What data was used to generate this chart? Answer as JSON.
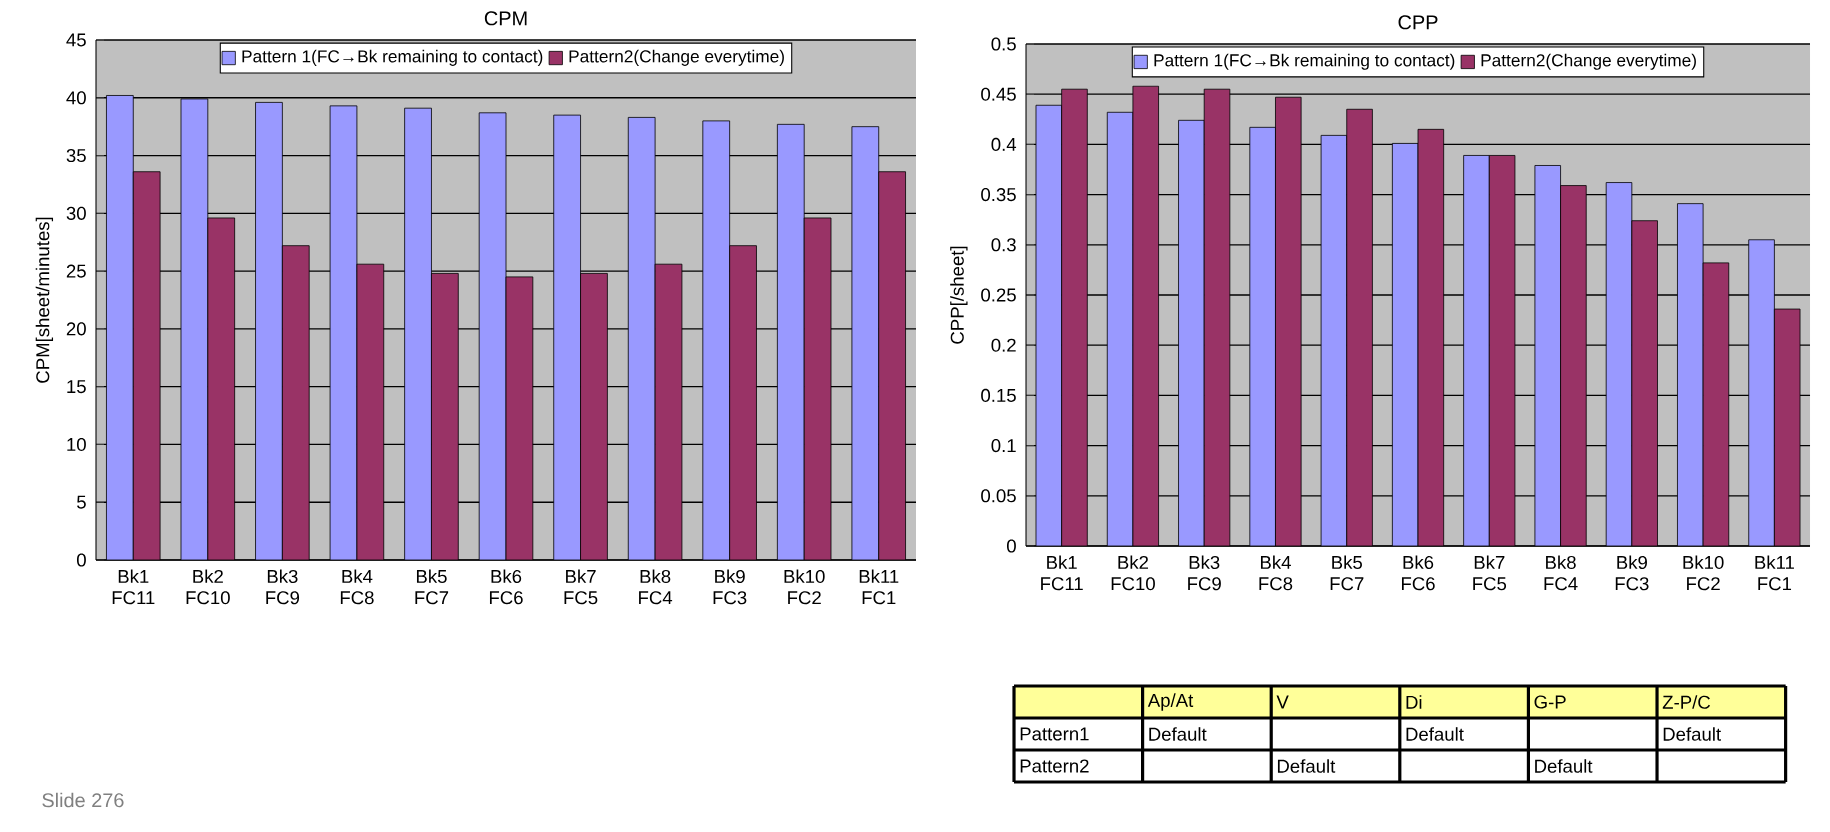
{
  "chart_data": [
    {
      "type": "bar",
      "title": "CPM",
      "ylabel": "CPM[sheet/minutes]",
      "categories": [
        "Bk1 FC11",
        "Bk2 FC10",
        "Bk3 FC9",
        "Bk4 FC8",
        "Bk5 FC7",
        "Bk6 FC6",
        "Bk7 FC5",
        "Bk8 FC4",
        "Bk9 FC3",
        "Bk10 FC2",
        "Bk11 FC1"
      ],
      "series": [
        {
          "name": "Pattern 1(FC→Bk remaining to contact)",
          "color": "#9999ff",
          "values": [
            40.2,
            39.9,
            39.6,
            39.3,
            39.1,
            38.7,
            38.5,
            38.3,
            38.0,
            37.7,
            37.5
          ]
        },
        {
          "name": "Pattern2(Change everytime)",
          "color": "#993366",
          "values": [
            33.6,
            29.6,
            27.2,
            25.6,
            24.8,
            24.5,
            24.8,
            25.6,
            27.2,
            29.6,
            33.6
          ]
        }
      ],
      "ylim": [
        0,
        45
      ],
      "yticks": [
        0,
        5,
        10,
        15,
        20,
        25,
        30,
        35,
        40,
        45
      ],
      "grid": "y",
      "legend": "top",
      "annotations": [
        "Slide 276"
      ]
    },
    {
      "type": "bar",
      "title": "CPP",
      "ylabel": "CPP[/sheet]",
      "categories": [
        "Bk1 FC11",
        "Bk2 FC10",
        "Bk3 FC9",
        "Bk4 FC8",
        "Bk5 FC7",
        "Bk6 FC6",
        "Bk7 FC5",
        "Bk8 FC4",
        "Bk9 FC3",
        "Bk10 FC2",
        "Bk11 FC1"
      ],
      "series": [
        {
          "name": "Pattern 1(FC→Bk remaining to contact)",
          "color": "#9999ff",
          "values": [
            0.439,
            0.432,
            0.424,
            0.417,
            0.409,
            0.401,
            0.389,
            0.379,
            0.362,
            0.341,
            0.305
          ]
        },
        {
          "name": "Pattern2(Change everytime)",
          "color": "#993366",
          "values": [
            0.455,
            0.458,
            0.455,
            0.447,
            0.435,
            0.415,
            0.389,
            0.359,
            0.324,
            0.282,
            0.236
          ]
        }
      ],
      "ylim": [
        0,
        0.5
      ],
      "yticks": [
        0,
        0.05,
        0.1,
        0.15,
        0.2,
        0.25,
        0.3,
        0.35,
        0.4,
        0.45,
        0.5
      ],
      "grid": "y",
      "legend": "top"
    },
    {
      "type": "other",
      "categories": [
        null,
        "Ap/At",
        "V",
        "Di",
        "G-P",
        "Z-P/C"
      ],
      "y_categories": [
        "Pattern1",
        "Pattern2"
      ],
      "cell_labels": [
        [
          "Default",
          null,
          "Default",
          null,
          "Default"
        ],
        [
          null,
          "Default",
          null,
          "Default",
          null
        ]
      ]
    }
  ]
}
